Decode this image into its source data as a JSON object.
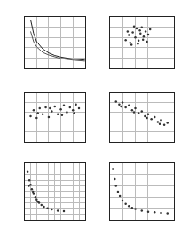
{
  "chart_data": [
    {
      "type": "line",
      "xlim": [
        0,
        10
      ],
      "ylim": [
        0,
        10
      ],
      "xticks": [
        0,
        2,
        4,
        6,
        8,
        10
      ],
      "yticks": [
        0,
        2,
        4,
        6,
        8,
        10
      ],
      "grid": true,
      "tick_labels": false,
      "series": [
        {
          "color": "#222222",
          "x": [
            1,
            1.5,
            2,
            3,
            4,
            5,
            6,
            8,
            10
          ],
          "values": [
            9.5,
            6.8,
            5.2,
            3.8,
            3.0,
            2.5,
            2.2,
            1.8,
            1.6
          ]
        },
        {
          "color": "#555555",
          "x": [
            1,
            1.5,
            2,
            3,
            4,
            5,
            6,
            8,
            10
          ],
          "values": [
            7.2,
            5.2,
            4.2,
            3.1,
            2.6,
            2.2,
            1.9,
            1.6,
            1.4
          ]
        }
      ]
    },
    {
      "type": "scatter",
      "xlim": [
        0,
        10
      ],
      "ylim": [
        0,
        10
      ],
      "xticks": [
        0,
        2,
        4,
        6,
        8,
        10
      ],
      "yticks": [
        0,
        2,
        4,
        6,
        8,
        10
      ],
      "grid": true,
      "tick_labels": false,
      "series": [
        {
          "color": "#333333",
          "x": [
            2.5,
            3,
            3.2,
            3.6,
            4,
            4.2,
            4.5,
            4.8,
            5,
            5.3,
            5.6,
            6,
            6.3,
            3.4,
            4.4,
            5.2,
            3.8,
            4.7,
            5.8,
            2.8
          ],
          "values": [
            5.5,
            6.5,
            5,
            7,
            6,
            7.8,
            5.4,
            6.8,
            8,
            6.2,
            7.2,
            6.6,
            7.6,
            4.6,
            4.8,
            5.6,
            8.2,
            7.4,
            5.2,
            7.2
          ]
        }
      ]
    },
    {
      "type": "scatter",
      "xlim": [
        0,
        10
      ],
      "ylim": [
        0,
        10
      ],
      "xticks": [
        0,
        2,
        4,
        6,
        8,
        10
      ],
      "yticks": [
        0,
        2,
        4,
        6,
        8,
        10
      ],
      "grid": true,
      "tick_labels": false,
      "series": [
        {
          "color": "#333333",
          "x": [
            1,
            1.5,
            2,
            2.5,
            3,
            3.5,
            4,
            4.5,
            5,
            5.5,
            6,
            6.5,
            7,
            7.5,
            8,
            8.5,
            9,
            2.2,
            4.2,
            6.2,
            8.2
          ],
          "values": [
            5.2,
            6.4,
            4.8,
            6.8,
            5.6,
            7.0,
            5.0,
            6.2,
            7.2,
            5.6,
            6.6,
            7.4,
            6.0,
            7.0,
            6.4,
            7.6,
            6.8,
            5.8,
            6.8,
            5.4,
            5.8
          ]
        }
      ]
    },
    {
      "type": "scatter",
      "xlim": [
        0,
        10
      ],
      "ylim": [
        0,
        10
      ],
      "xticks": [
        0,
        2,
        4,
        6,
        8,
        10
      ],
      "yticks": [
        0,
        2,
        4,
        6,
        8,
        10
      ],
      "grid": true,
      "tick_labels": false,
      "series": [
        {
          "color": "#333333",
          "x": [
            1,
            1.5,
            2,
            2.5,
            3,
            3.5,
            4,
            4.5,
            5,
            5.5,
            6,
            6.5,
            7,
            7.5,
            8,
            8.5,
            9,
            1.8,
            3.8,
            5.8,
            7.8
          ],
          "values": [
            8.2,
            7.6,
            8.0,
            7.0,
            7.4,
            6.4,
            6.8,
            5.8,
            6.2,
            5.2,
            5.6,
            4.6,
            5.0,
            4.0,
            4.4,
            3.4,
            3.8,
            7.2,
            6.0,
            4.8,
            3.6
          ]
        }
      ]
    },
    {
      "type": "scatter",
      "xlim": [
        0,
        10
      ],
      "ylim": [
        0,
        10
      ],
      "xticks": [
        0,
        1,
        2,
        3,
        4,
        5,
        6,
        7,
        8,
        9,
        10
      ],
      "yticks": [
        0,
        1,
        2,
        3,
        4,
        5,
        6,
        7,
        8,
        9,
        10
      ],
      "grid": true,
      "tick_labels": false,
      "series": [
        {
          "color": "#333333",
          "x": [
            0.5,
            0.8,
            1,
            1.2,
            1.5,
            1.8,
            2,
            2.4,
            2.8,
            3.2,
            3.8,
            4.5,
            5.5,
            6.5,
            0.7,
            1.4,
            2.2
          ],
          "values": [
            8.5,
            7.0,
            6.2,
            5.4,
            4.6,
            4.0,
            3.6,
            3.0,
            2.6,
            2.3,
            2.0,
            1.8,
            1.6,
            1.5,
            6.0,
            5.0,
            3.2
          ]
        }
      ]
    },
    {
      "type": "scatter",
      "xlim": [
        0,
        10
      ],
      "ylim": [
        0,
        10
      ],
      "xticks": [
        0,
        2,
        4,
        6,
        8,
        10
      ],
      "yticks": [
        0,
        2,
        4,
        6,
        8,
        10
      ],
      "grid": true,
      "tick_labels": false,
      "series": [
        {
          "color": "#333333",
          "x": [
            0.5,
            0.8,
            1,
            1.3,
            1.6,
            2,
            2.5,
            3,
            3.5,
            4,
            5,
            6,
            7,
            8,
            9
          ],
          "values": [
            9.0,
            7.2,
            6.0,
            5.0,
            4.2,
            3.4,
            2.8,
            2.4,
            2.1,
            1.9,
            1.6,
            1.4,
            1.3,
            1.2,
            1.1
          ]
        }
      ]
    }
  ]
}
